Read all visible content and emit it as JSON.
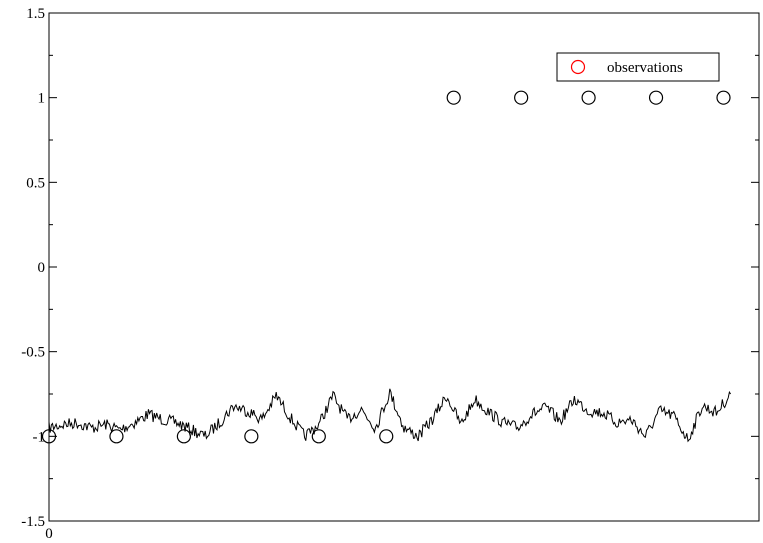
{
  "chart_data": {
    "type": "line",
    "title": "",
    "xlabel": "",
    "ylabel": "",
    "xlim": [
      0,
      1
    ],
    "ylim": [
      -1.5,
      1.5
    ],
    "x_ticks": [
      {
        "value": 0,
        "label": "0"
      }
    ],
    "y_ticks": [
      {
        "value": 1.5,
        "label": "1.5"
      },
      {
        "value": 1,
        "label": "1"
      },
      {
        "value": 0.5,
        "label": "0.5"
      },
      {
        "value": 0,
        "label": "0"
      },
      {
        "value": -0.5,
        "label": "-0.5"
      },
      {
        "value": -1,
        "label": "-1"
      },
      {
        "value": -1.5,
        "label": "-1.5"
      }
    ],
    "grid": false,
    "legend": {
      "position": "top-right",
      "entries": [
        {
          "label": "observations",
          "marker": "circle",
          "color": "#ff0000"
        }
      ]
    },
    "series": [
      {
        "kind": "scatter",
        "marker": "open-circle",
        "color": "#000000",
        "x": [
          0.0,
          0.095,
          0.19,
          0.285,
          0.38,
          0.475,
          0.57,
          0.665,
          0.76,
          0.855,
          0.95
        ],
        "y": [
          -1,
          -1,
          -1,
          -1,
          -1,
          -1,
          1,
          1,
          1,
          1,
          1
        ]
      },
      {
        "kind": "line",
        "color": "#000000",
        "x": [
          0.0,
          0.02,
          0.04,
          0.06,
          0.08,
          0.1,
          0.12,
          0.14,
          0.16,
          0.18,
          0.2,
          0.22,
          0.24,
          0.26,
          0.28,
          0.3,
          0.32,
          0.34,
          0.36,
          0.38,
          0.4,
          0.42,
          0.44,
          0.46,
          0.48,
          0.5,
          0.52,
          0.54,
          0.56,
          0.58,
          0.6,
          0.62,
          0.64,
          0.66,
          0.68,
          0.7,
          0.72,
          0.74,
          0.76,
          0.78,
          0.8,
          0.82,
          0.84,
          0.86,
          0.88,
          0.9,
          0.92,
          0.94,
          0.96
        ],
        "y": [
          -0.95,
          -0.93,
          -0.92,
          -0.95,
          -0.93,
          -0.96,
          -0.92,
          -0.87,
          -0.9,
          -0.92,
          -0.96,
          -1.0,
          -0.92,
          -0.82,
          -0.85,
          -0.9,
          -0.76,
          -0.89,
          -1.0,
          -0.93,
          -0.76,
          -0.9,
          -0.84,
          -0.95,
          -0.74,
          -0.95,
          -1.0,
          -0.9,
          -0.76,
          -0.93,
          -0.78,
          -0.86,
          -0.92,
          -0.95,
          -0.87,
          -0.83,
          -0.91,
          -0.78,
          -0.85,
          -0.86,
          -0.92,
          -0.9,
          -1.0,
          -0.85,
          -0.88,
          -1.02,
          -0.82,
          -0.86,
          -0.75
        ]
      }
    ]
  }
}
